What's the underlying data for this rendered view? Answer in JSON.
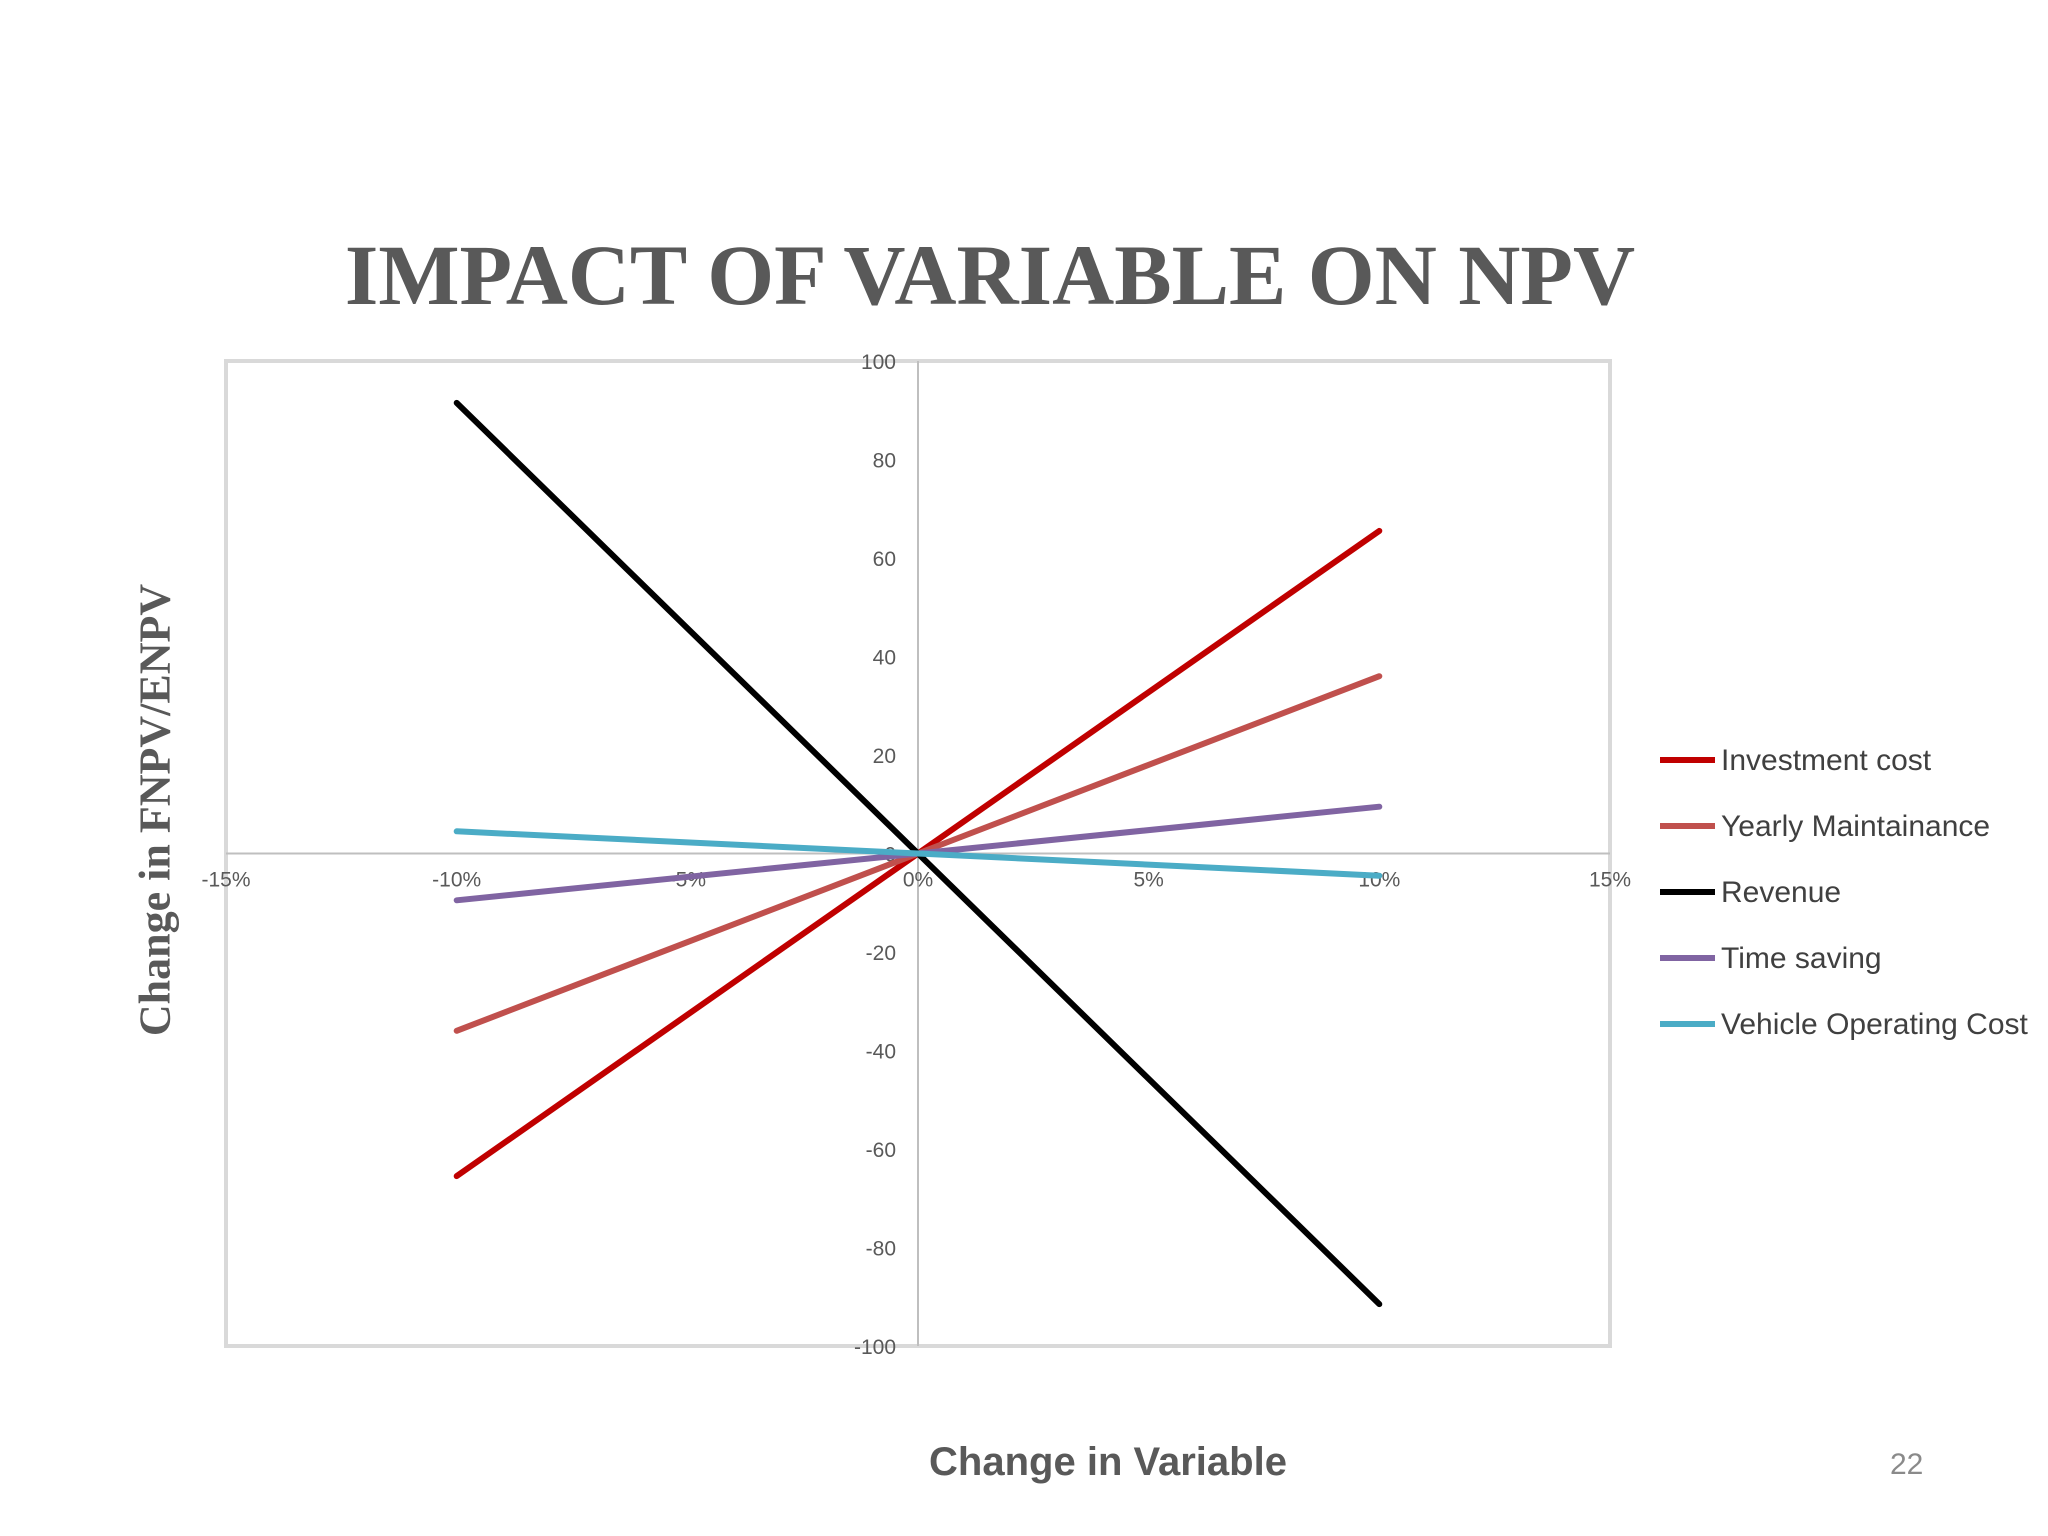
{
  "slide": {
    "title": "IMPACT OF VARIABLE ON NPV",
    "page_number": "22"
  },
  "chart_data": {
    "type": "line",
    "title": "IMPACT OF VARIABLE ON NPV",
    "xlabel": "Change in Variable",
    "ylabel": "Change in FNPV/ENPV",
    "xlim": [
      -15,
      15
    ],
    "ylim": [
      -100,
      100
    ],
    "x_ticks": [
      "-15%",
      "-10%",
      "-5%",
      "0%",
      "5%",
      "10%",
      "15%"
    ],
    "y_ticks": [
      "100",
      "80",
      "60",
      "40",
      "20",
      "0",
      "-20",
      "-40",
      "-60",
      "-80",
      "-100"
    ],
    "x": [
      -10,
      0,
      10
    ],
    "grid": false,
    "legend_position": "right",
    "series": [
      {
        "name": "Investment cost",
        "color": "#C00000",
        "values": [
          -65.5,
          0,
          65.5
        ]
      },
      {
        "name": "Yearly Maintainance",
        "color": "#C0504D",
        "values": [
          -36,
          0,
          36
        ]
      },
      {
        "name": "Revenue",
        "color": "#000000",
        "values": [
          91.5,
          0,
          -91.5
        ]
      },
      {
        "name": "Time saving",
        "color": "#8064A2",
        "values": [
          -9.5,
          0,
          9.5
        ]
      },
      {
        "name": "Vehicle Operating Cost",
        "color": "#4BACC6",
        "values": [
          4.5,
          0,
          -4.5
        ]
      }
    ]
  }
}
